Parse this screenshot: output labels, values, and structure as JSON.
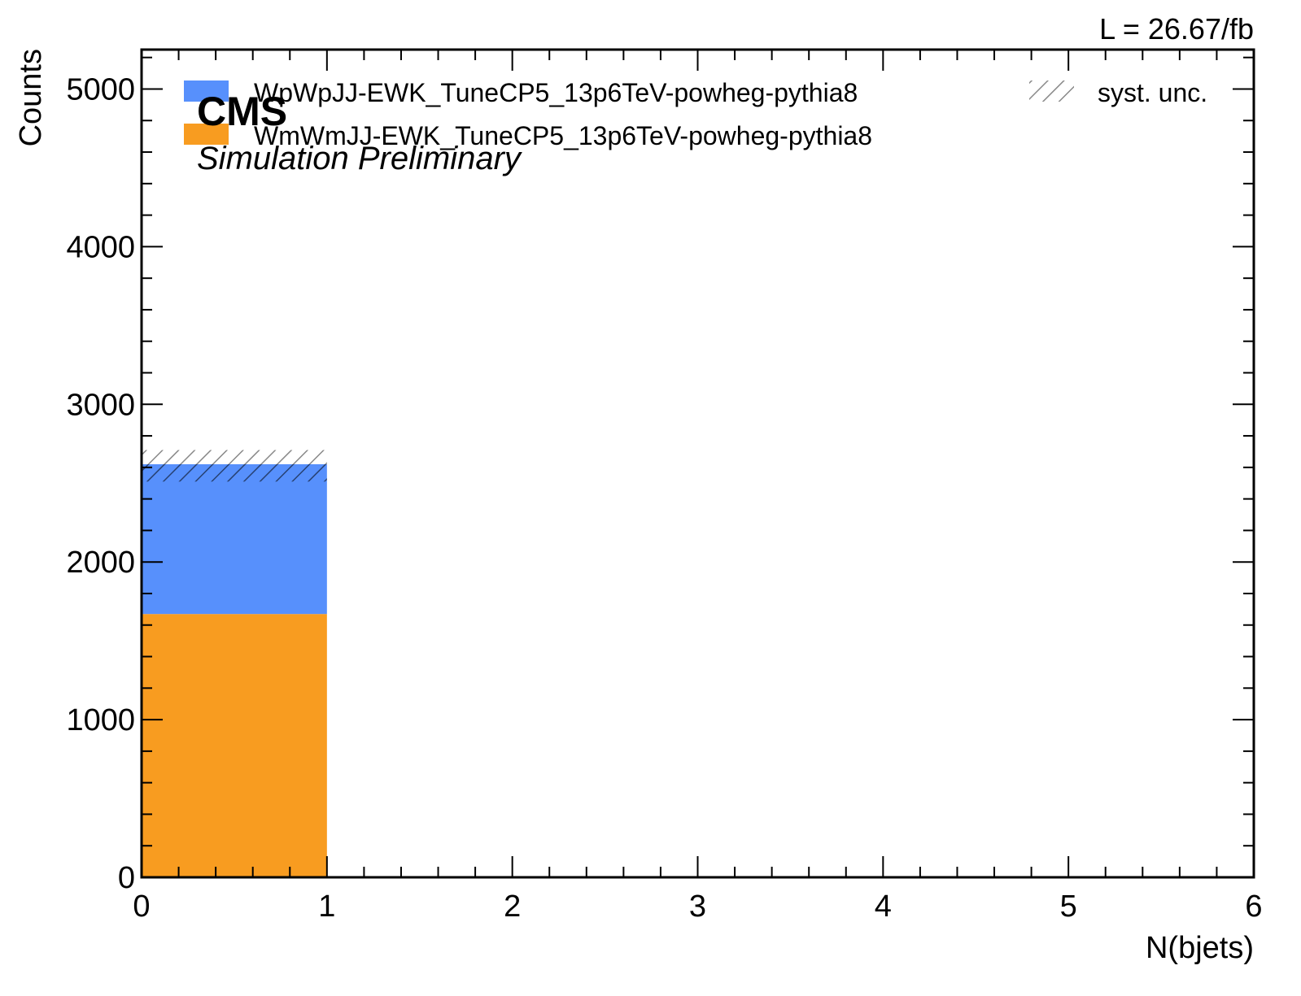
{
  "chart_data": {
    "type": "bar",
    "stacked": true,
    "histogram": true,
    "bin_edges": [
      0,
      1,
      2,
      3,
      4,
      5,
      6
    ],
    "series": [
      {
        "name": "WmWmJJ-EWK_TuneCP5_13p6TeV-powheg-pythia8",
        "values": [
          1670,
          0,
          0,
          0,
          0,
          0
        ],
        "color": "#f89c20"
      },
      {
        "name": "WpWpJJ-EWK_TuneCP5_13p6TeV-powheg-pythia8",
        "values": [
          950,
          0,
          0,
          0,
          0,
          0
        ],
        "color": "#5790fc"
      }
    ],
    "syst_unc": {
      "name": "syst. unc.",
      "low": [
        2510,
        0,
        0,
        0,
        0,
        0
      ],
      "high": [
        2710,
        0,
        0,
        0,
        0,
        0
      ]
    },
    "xlabel": "N(bjets)",
    "ylabel": "Counts",
    "xlim": [
      0,
      6
    ],
    "ylim": [
      0,
      5250
    ],
    "x_ticks": [
      "0",
      "1",
      "2",
      "3",
      "4",
      "5",
      "6"
    ],
    "y_ticks": [
      "0",
      "1000",
      "2000",
      "3000",
      "4000",
      "5000"
    ],
    "grid": false,
    "legend_placement": "top",
    "experiment_label": "CMS",
    "experiment_sublabel": "Simulation Preliminary",
    "luminosity_label": "L = 26.67/fb"
  }
}
